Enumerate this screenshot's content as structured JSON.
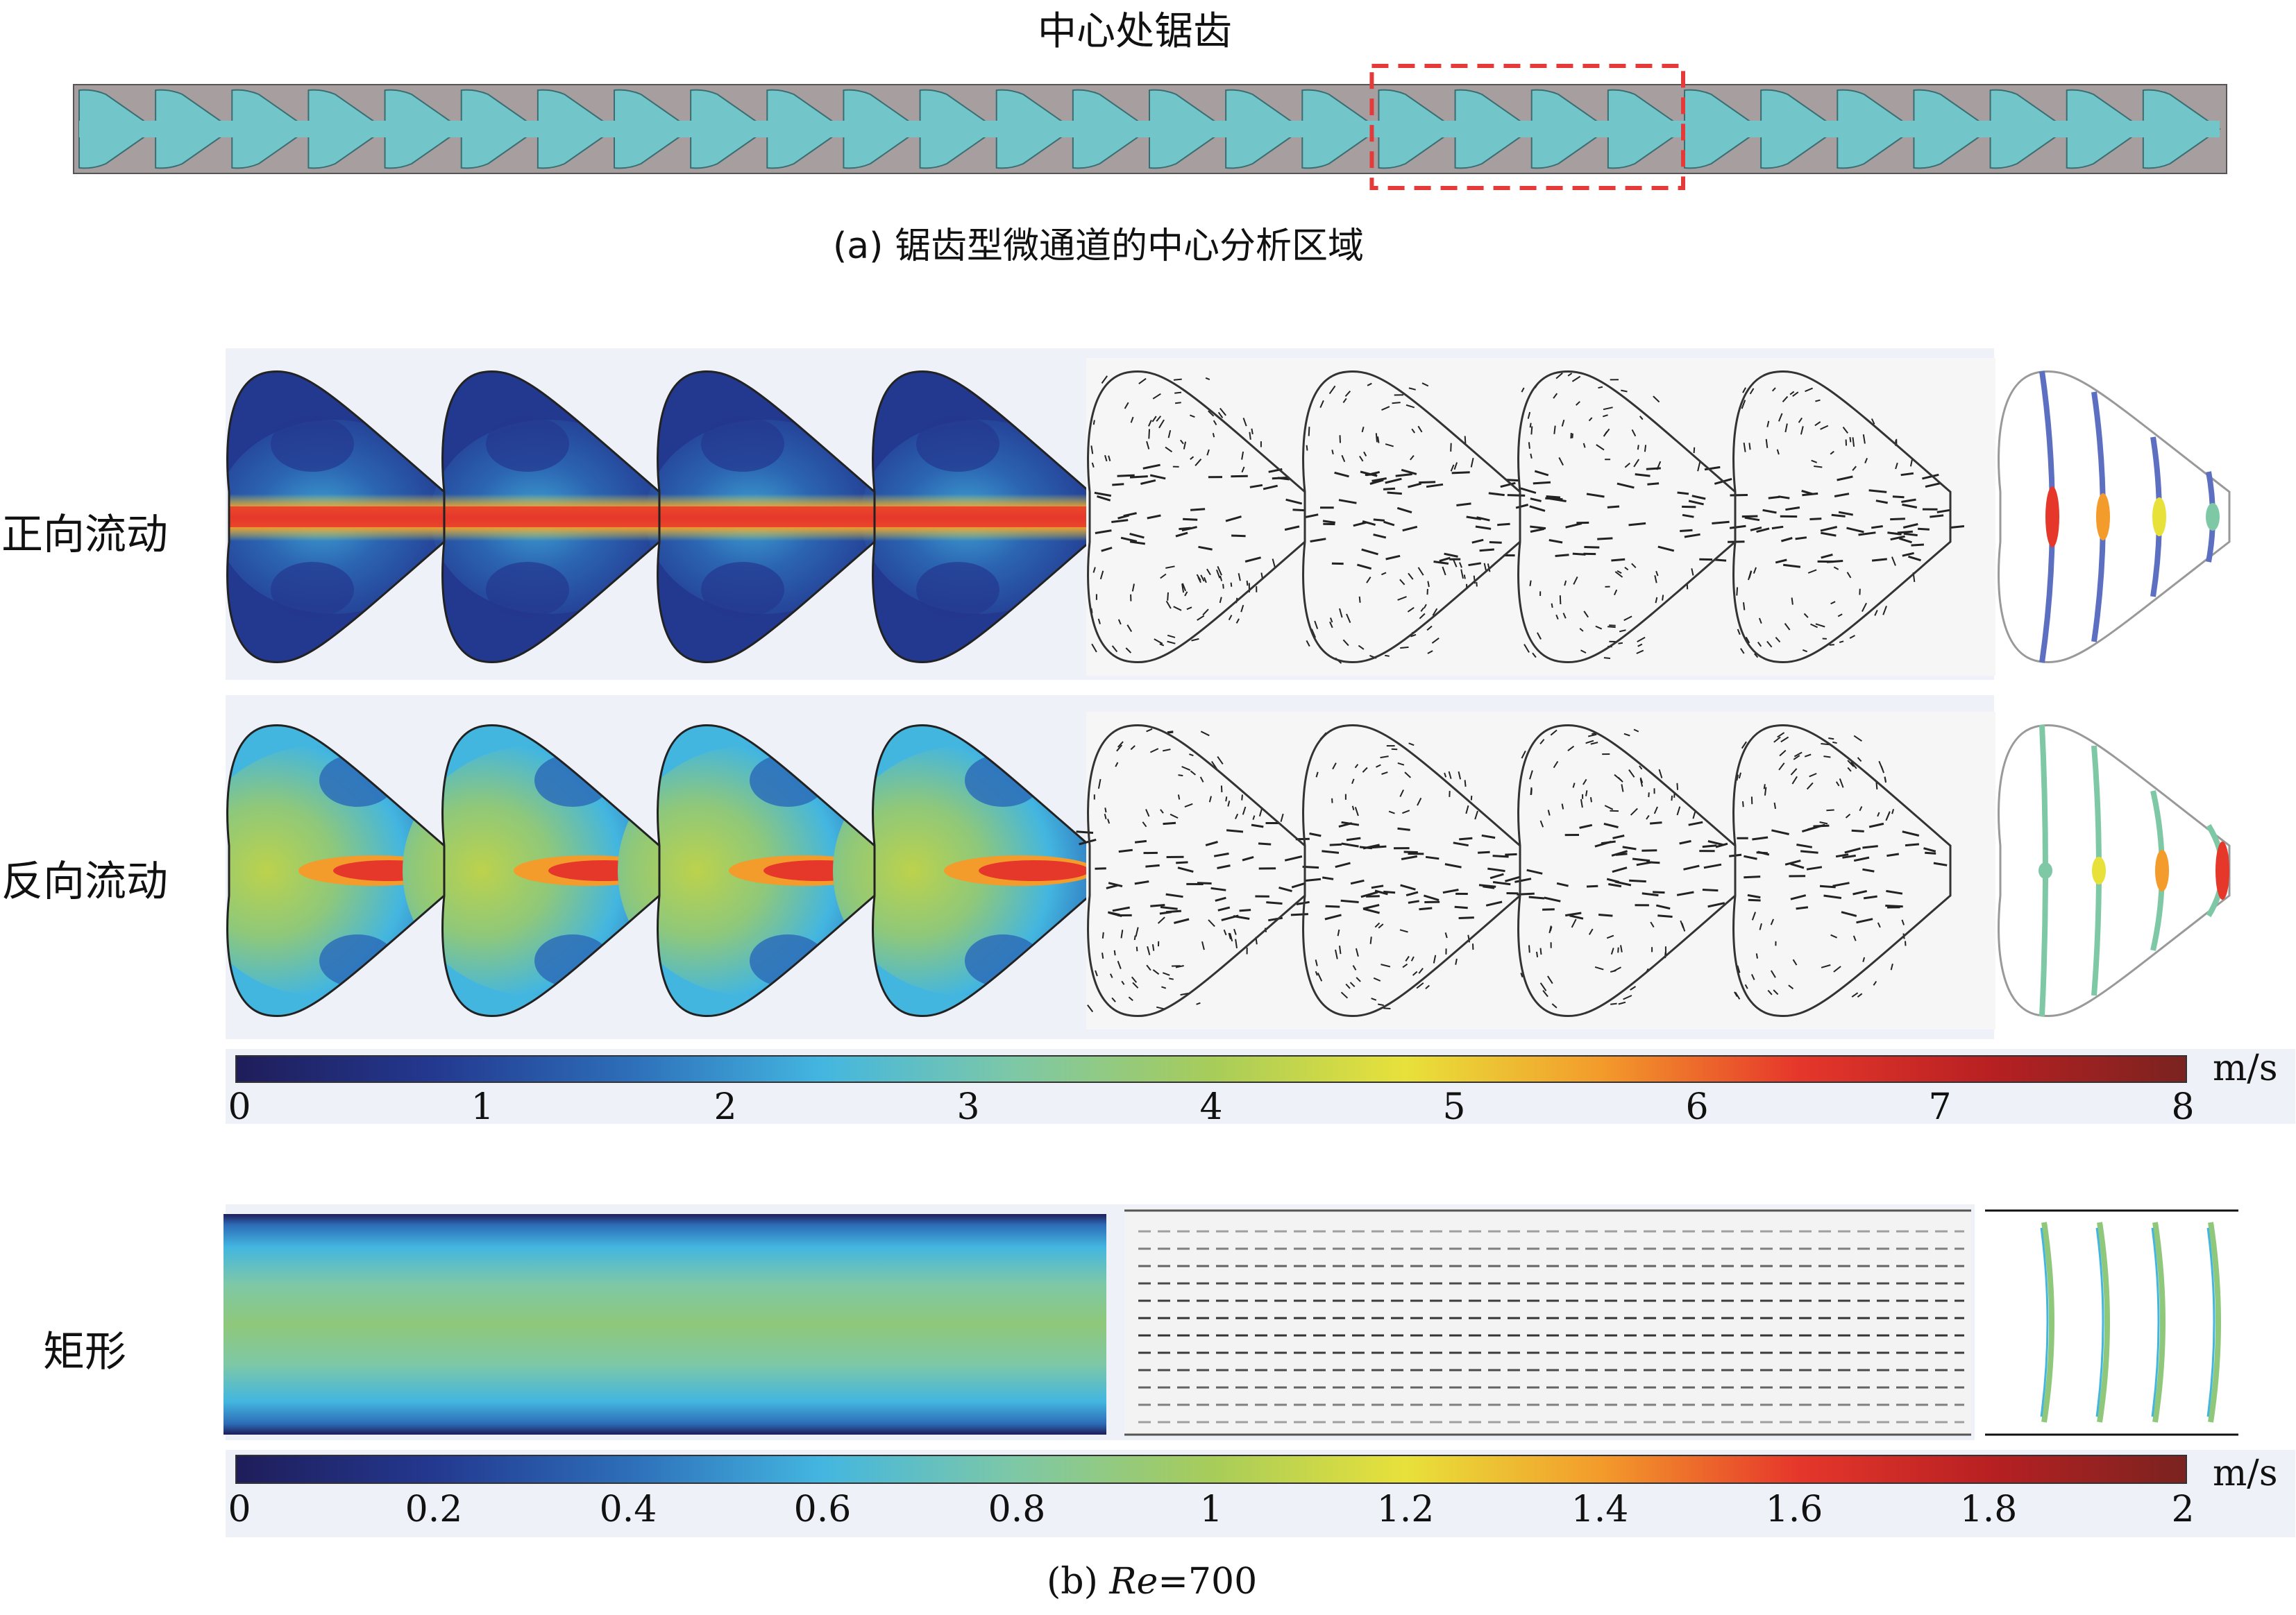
{
  "part_a": {
    "highlight_label": "中心处锯齿",
    "caption": "(a) 锯齿型微通道的中心分析区域"
  },
  "part_b": {
    "rows": [
      {
        "label": "正向流动"
      },
      {
        "label": "反向流动"
      },
      {
        "label": "矩形"
      }
    ],
    "colorbar_1": {
      "ticks": [
        "0",
        "1",
        "2",
        "3",
        "4",
        "5",
        "6",
        "7",
        "8"
      ],
      "unit": "m/s",
      "range": [
        0,
        8
      ]
    },
    "colorbar_2": {
      "ticks": [
        "0",
        "0.2",
        "0.4",
        "0.6",
        "0.8",
        "1",
        "1.2",
        "1.4",
        "1.6",
        "1.8",
        "2"
      ],
      "unit": "m/s",
      "range": [
        0,
        2
      ]
    },
    "caption": {
      "prefix": "(b) ",
      "re_symbol": "Re",
      "re_value": "=700"
    }
  },
  "colors": {
    "channel_outer": "#a79e9f",
    "channel_inner": "#72c6c9",
    "highlight_box": "#e53a3a",
    "panel_bg": "#eef1f7"
  },
  "colormap": [
    "#1f1d5a",
    "#23388f",
    "#2d6db8",
    "#43b6e0",
    "#7ec8a6",
    "#a7cc5a",
    "#e8e13a",
    "#f39b2b",
    "#e6372b",
    "#b72022",
    "#7a2320"
  ]
}
